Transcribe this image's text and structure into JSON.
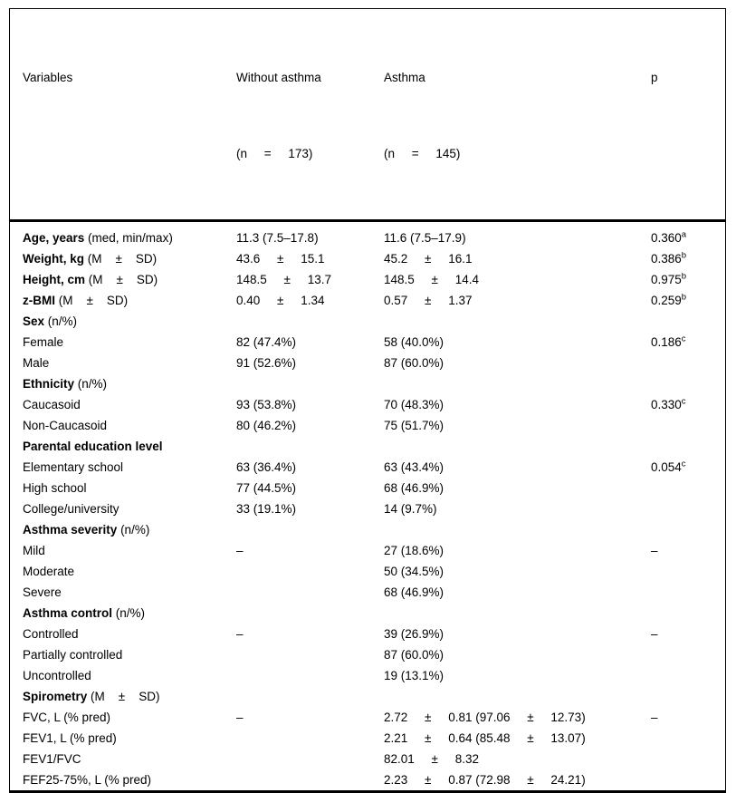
{
  "table": {
    "header": {
      "col1": "Variables",
      "col2_line1": "Without asthma",
      "col2_line2": "(n     =     173)",
      "col3_line1": "Asthma",
      "col3_line2": "(n     =     145)",
      "col4": "p"
    },
    "rows": [
      {
        "bold": "Age, years",
        "rest": " (med, min/max)",
        "without": "11.3 (7.5–17.8)",
        "asthma": "11.6 (7.5–17.9)",
        "p": "0.360",
        "p_sup": "a"
      },
      {
        "bold": "Weight, kg",
        "rest": " (M    ±    SD)",
        "without": "43.6     ±     15.1",
        "asthma": "45.2     ±     16.1",
        "p": "0.386",
        "p_sup": "b"
      },
      {
        "bold": "Height, cm",
        "rest": " (M    ±    SD)",
        "without": "148.5     ±     13.7",
        "asthma": "148.5     ±     14.4",
        "p": "0.975",
        "p_sup": "b"
      },
      {
        "bold": "z-BMI",
        "rest": " (M    ±    SD)",
        "without": "0.40     ±     1.34",
        "asthma": "0.57     ±     1.37",
        "p": "0.259",
        "p_sup": "b"
      },
      {
        "bold": "Sex",
        "rest": " (n/%)",
        "without": "",
        "asthma": "",
        "p": "",
        "p_sup": ""
      },
      {
        "bold": "",
        "rest": "Female",
        "without": "82 (47.4%)",
        "asthma": "58 (40.0%)",
        "p": "0.186",
        "p_sup": "c"
      },
      {
        "bold": "",
        "rest": "Male",
        "without": "91 (52.6%)",
        "asthma": "87 (60.0%)",
        "p": "",
        "p_sup": ""
      },
      {
        "bold": "Ethnicity",
        "rest": " (n/%)",
        "without": "",
        "asthma": "",
        "p": "",
        "p_sup": ""
      },
      {
        "bold": "",
        "rest": "Caucasoid",
        "without": "93 (53.8%)",
        "asthma": "70 (48.3%)",
        "p": "0.330",
        "p_sup": "c"
      },
      {
        "bold": "",
        "rest": "Non-Caucasoid",
        "without": "80 (46.2%)",
        "asthma": "75 (51.7%)",
        "p": "",
        "p_sup": ""
      },
      {
        "bold": "Parental education level",
        "rest": "",
        "without": "",
        "asthma": "",
        "p": "",
        "p_sup": ""
      },
      {
        "bold": "",
        "rest": "Elementary school",
        "without": "63 (36.4%)",
        "asthma": "63 (43.4%)",
        "p": "0.054",
        "p_sup": "c"
      },
      {
        "bold": "",
        "rest": "High school",
        "without": "77 (44.5%)",
        "asthma": "68 (46.9%)",
        "p": "",
        "p_sup": ""
      },
      {
        "bold": "",
        "rest": "College/university",
        "without": "33 (19.1%)",
        "asthma": "14 (9.7%)",
        "p": "",
        "p_sup": ""
      },
      {
        "bold": "Asthma severity",
        "rest": " (n/%)",
        "without": "",
        "asthma": "",
        "p": "",
        "p_sup": ""
      },
      {
        "bold": "",
        "rest": "Mild",
        "without": "–",
        "asthma": "27 (18.6%)",
        "p": "–",
        "p_sup": ""
      },
      {
        "bold": "",
        "rest": "Moderate",
        "without": "",
        "asthma": "50 (34.5%)",
        "p": "",
        "p_sup": ""
      },
      {
        "bold": "",
        "rest": "Severe",
        "without": "",
        "asthma": "68 (46.9%)",
        "p": "",
        "p_sup": ""
      },
      {
        "bold": "Asthma control",
        "rest": " (n/%)",
        "without": "",
        "asthma": "",
        "p": "",
        "p_sup": ""
      },
      {
        "bold": "",
        "rest": "Controlled",
        "without": "–",
        "asthma": "39 (26.9%)",
        "p": "–",
        "p_sup": ""
      },
      {
        "bold": "",
        "rest": "Partially controlled",
        "without": "",
        "asthma": "87 (60.0%)",
        "p": "",
        "p_sup": ""
      },
      {
        "bold": "",
        "rest": "Uncontrolled",
        "without": "",
        "asthma": "19 (13.1%)",
        "p": "",
        "p_sup": ""
      },
      {
        "bold": "Spirometry",
        "rest": " (M    ±    SD)",
        "without": "",
        "asthma": "",
        "p": "",
        "p_sup": ""
      },
      {
        "bold": "",
        "rest": "FVC, L (% pred)",
        "without": "–",
        "asthma": "2.72     ±     0.81 (97.06     ±     12.73)",
        "p": "–",
        "p_sup": ""
      },
      {
        "bold": "",
        "rest": "FEV1, L (% pred)",
        "without": "",
        "asthma": "2.21     ±     0.64 (85.48     ±     13.07)",
        "p": "",
        "p_sup": ""
      },
      {
        "bold": "",
        "rest": "FEV1/FVC",
        "without": "",
        "asthma": "82.01     ±     8.32",
        "p": "",
        "p_sup": ""
      },
      {
        "bold": "",
        "rest": "FEF25-75%, L (% pred)",
        "without": "",
        "asthma": "2.23     ±     0.87 (72.98     ±     24.21)",
        "p": "",
        "p_sup": ""
      }
    ]
  }
}
